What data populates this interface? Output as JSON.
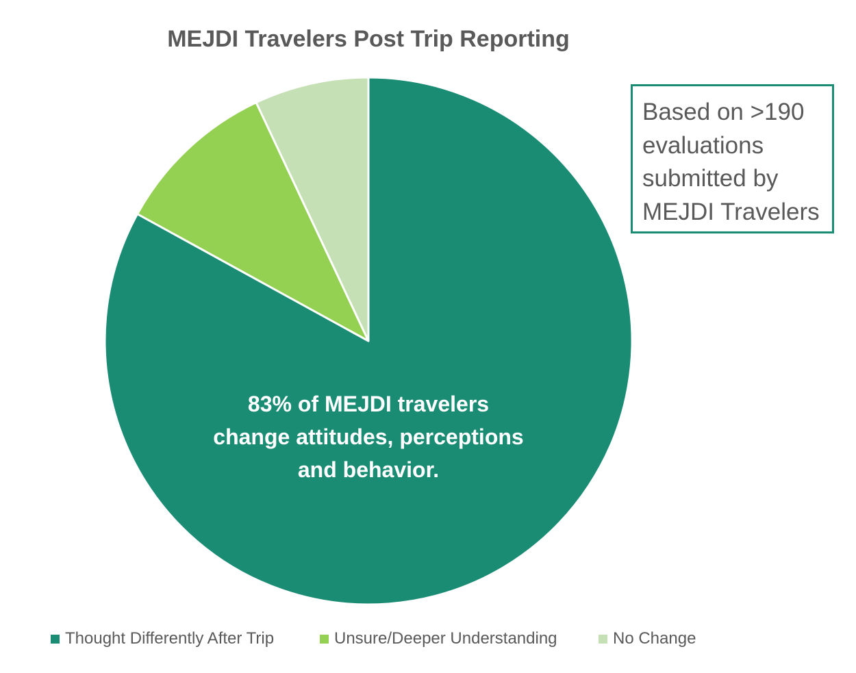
{
  "chart_data": {
    "type": "pie",
    "title": "MEJDI Travelers Post Trip Reporting",
    "start_angle_deg": 0,
    "direction": "clockwise",
    "slices": [
      {
        "label": "Thought Differently After Trip",
        "value": 83,
        "color": "#1b8c74"
      },
      {
        "label": "Unsure/Deeper Understanding",
        "value": 10,
        "color": "#94d152"
      },
      {
        "label": "No Change",
        "value": 7,
        "color": "#c5e0b4"
      }
    ],
    "legend_position": "bottom",
    "annotation_lines": [
      "83% of MEJDI travelers",
      "change attitudes, perceptions",
      "and behavior."
    ],
    "note_lines": [
      "Based on >190",
      "evaluations",
      "submitted by",
      "MEJDI Travelers"
    ],
    "note_border_color": "#1b8c74"
  }
}
